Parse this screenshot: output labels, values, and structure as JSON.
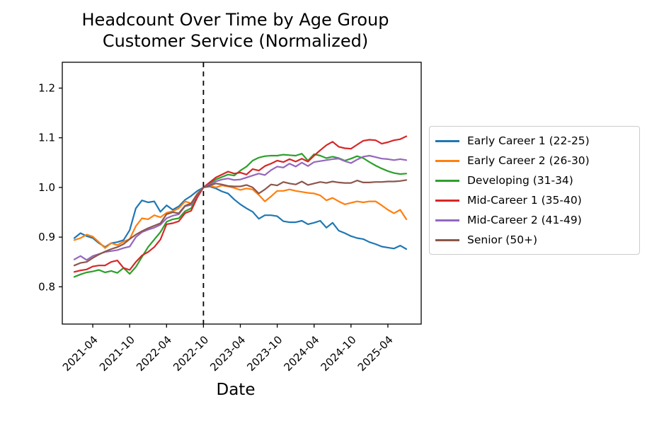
{
  "chart_data": {
    "type": "line",
    "title": "Headcount Over Time by Age Group",
    "subtitle": "Customer Service (Normalized)",
    "xlabel": "Date",
    "ylabel": "",
    "x_monthly_start": "2021-01",
    "x_tick_labels": [
      "2021-04",
      "2021-10",
      "2022-04",
      "2022-10",
      "2023-04",
      "2023-10",
      "2024-04",
      "2024-10",
      "2025-04"
    ],
    "x_tick_month_indices": [
      3,
      9,
      15,
      21,
      27,
      33,
      39,
      45,
      51
    ],
    "y_ticks": [
      0.8,
      0.9,
      1.0,
      1.1,
      1.2
    ],
    "ylim": [
      0.725,
      1.252
    ],
    "grid": false,
    "legend_position": "right",
    "axis_color": "#000000",
    "vline": {
      "month_index": 21,
      "at_label": "2022-10",
      "style": "dashed",
      "color": "#000000"
    },
    "series": [
      {
        "name": "Early Career 1 (22-25)",
        "color": "#1f77b4",
        "values": [
          0.898,
          0.908,
          0.902,
          0.898,
          0.888,
          0.88,
          0.888,
          0.89,
          0.894,
          0.914,
          0.958,
          0.974,
          0.97,
          0.972,
          0.951,
          0.964,
          0.955,
          0.962,
          0.975,
          0.983,
          0.993,
          1.0,
          1.002,
          0.998,
          0.992,
          0.988,
          0.976,
          0.966,
          0.958,
          0.951,
          0.937,
          0.944,
          0.944,
          0.942,
          0.932,
          0.93,
          0.93,
          0.933,
          0.926,
          0.929,
          0.933,
          0.919,
          0.929,
          0.913,
          0.908,
          0.902,
          0.898,
          0.896,
          0.89,
          0.886,
          0.881,
          0.879,
          0.877,
          0.883,
          0.876
        ]
      },
      {
        "name": "Early Career 2 (26-30)",
        "color": "#ff7f0e",
        "values": [
          0.894,
          0.898,
          0.905,
          0.901,
          0.89,
          0.878,
          0.888,
          0.884,
          0.891,
          0.896,
          0.922,
          0.938,
          0.936,
          0.944,
          0.94,
          0.949,
          0.952,
          0.958,
          0.972,
          0.968,
          0.988,
          1.0,
          1.004,
          1.0,
          1.004,
          1.002,
          0.999,
          0.995,
          0.998,
          0.996,
          0.985,
          0.972,
          0.982,
          0.993,
          0.993,
          0.996,
          0.993,
          0.991,
          0.989,
          0.988,
          0.984,
          0.974,
          0.979,
          0.972,
          0.966,
          0.969,
          0.972,
          0.97,
          0.972,
          0.972,
          0.964,
          0.955,
          0.948,
          0.955,
          0.936
        ]
      },
      {
        "name": "Developing (31-34)",
        "color": "#2ca02c",
        "values": [
          0.82,
          0.825,
          0.829,
          0.831,
          0.834,
          0.829,
          0.832,
          0.828,
          0.838,
          0.826,
          0.84,
          0.86,
          0.88,
          0.895,
          0.91,
          0.931,
          0.936,
          0.938,
          0.952,
          0.958,
          0.982,
          1.0,
          1.008,
          1.016,
          1.021,
          1.026,
          1.024,
          1.034,
          1.042,
          1.054,
          1.06,
          1.063,
          1.064,
          1.064,
          1.066,
          1.065,
          1.064,
          1.068,
          1.054,
          1.067,
          1.064,
          1.059,
          1.062,
          1.059,
          1.054,
          1.058,
          1.063,
          1.059,
          1.051,
          1.044,
          1.038,
          1.033,
          1.029,
          1.027,
          1.028
        ]
      },
      {
        "name": "Mid-Career 1 (35-40)",
        "color": "#d62728",
        "values": [
          0.83,
          0.833,
          0.835,
          0.841,
          0.843,
          0.843,
          0.85,
          0.853,
          0.838,
          0.834,
          0.85,
          0.863,
          0.87,
          0.88,
          0.895,
          0.926,
          0.928,
          0.932,
          0.948,
          0.953,
          0.98,
          1.0,
          1.01,
          1.02,
          1.026,
          1.032,
          1.028,
          1.03,
          1.026,
          1.037,
          1.034,
          1.043,
          1.048,
          1.054,
          1.051,
          1.057,
          1.052,
          1.058,
          1.052,
          1.064,
          1.075,
          1.085,
          1.092,
          1.082,
          1.079,
          1.078,
          1.086,
          1.094,
          1.096,
          1.095,
          1.088,
          1.091,
          1.095,
          1.097,
          1.103
        ]
      },
      {
        "name": "Mid-Career 2 (41-49)",
        "color": "#9467bd",
        "values": [
          0.855,
          0.862,
          0.854,
          0.862,
          0.866,
          0.87,
          0.872,
          0.874,
          0.878,
          0.881,
          0.9,
          0.91,
          0.915,
          0.919,
          0.925,
          0.938,
          0.943,
          0.946,
          0.962,
          0.965,
          0.985,
          1.0,
          1.006,
          1.012,
          1.016,
          1.018,
          1.015,
          1.016,
          1.02,
          1.024,
          1.028,
          1.025,
          1.035,
          1.042,
          1.04,
          1.048,
          1.042,
          1.05,
          1.043,
          1.051,
          1.053,
          1.055,
          1.057,
          1.058,
          1.053,
          1.049,
          1.056,
          1.062,
          1.064,
          1.061,
          1.058,
          1.057,
          1.055,
          1.057,
          1.055
        ]
      },
      {
        "name": "Senior (50+)",
        "color": "#8c564b",
        "values": [
          0.843,
          0.848,
          0.85,
          0.858,
          0.865,
          0.871,
          0.876,
          0.88,
          0.886,
          0.896,
          0.905,
          0.912,
          0.918,
          0.923,
          0.928,
          0.946,
          0.95,
          0.948,
          0.963,
          0.968,
          0.986,
          1.0,
          1.004,
          1.008,
          1.006,
          1.003,
          1.002,
          1.002,
          1.005,
          1.0,
          0.988,
          0.996,
          1.006,
          1.004,
          1.011,
          1.008,
          1.006,
          1.012,
          1.005,
          1.008,
          1.011,
          1.009,
          1.012,
          1.01,
          1.009,
          1.009,
          1.014,
          1.01,
          1.01,
          1.011,
          1.011,
          1.012,
          1.012,
          1.013,
          1.015
        ]
      }
    ]
  }
}
